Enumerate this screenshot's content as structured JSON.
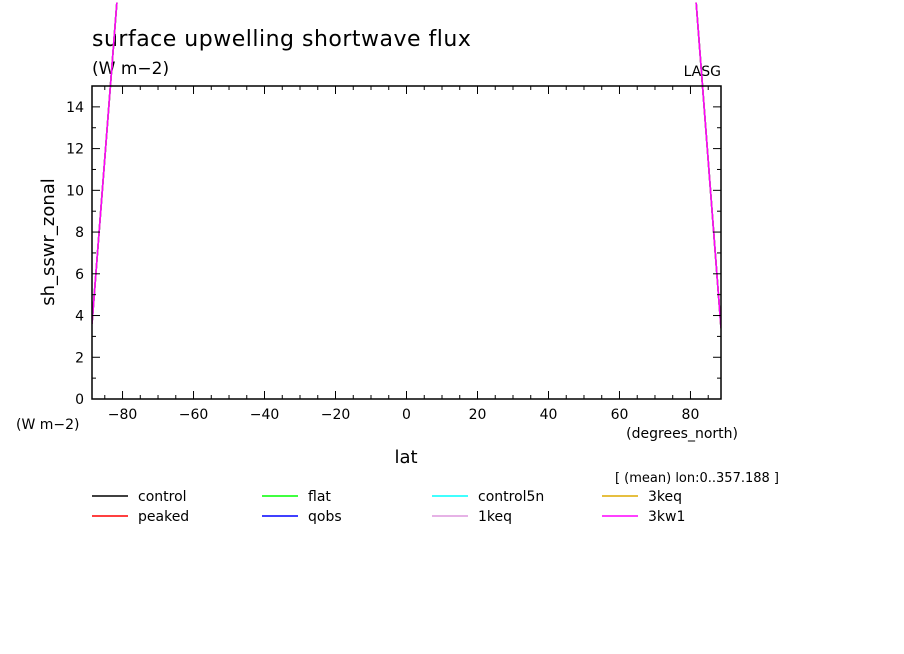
{
  "chart_data": {
    "type": "line",
    "title": "surface upwelling shortwave flux",
    "subtitle": "(W m−2)",
    "corner_label": "LASG",
    "xlabel": "lat",
    "xunit": "(degrees_north)",
    "ylabel": "sh_sswr_zonal",
    "yunit": "(W m−2)",
    "annotation": "[ (mean) lon:0..357.188 ]",
    "xlim": [
      -88.6,
      88.6
    ],
    "ylim": [
      0,
      15
    ],
    "xticks": [
      -80,
      -60,
      -40,
      -20,
      0,
      20,
      40,
      60,
      80
    ],
    "xtick_labels": [
      "−80",
      "−60",
      "−40",
      "−20",
      "0",
      "20",
      "40",
      "60",
      "80"
    ],
    "yticks": [
      0,
      2,
      4,
      6,
      8,
      10,
      12,
      14
    ],
    "ytick_labels": [
      "0",
      "2",
      "4",
      "6",
      "8",
      "10",
      "12",
      "14"
    ],
    "series": [
      {
        "name": "control",
        "color": "#000000",
        "x": [
          -88.6,
          -81.6,
          81.6,
          88.6
        ],
        "y": [
          3.6,
          19.0,
          19.0,
          3.4
        ]
      },
      {
        "name": "peaked",
        "color": "#ff0000",
        "x": [
          -88.6,
          -81.6,
          81.6,
          88.6
        ],
        "y": [
          3.6,
          19.0,
          19.0,
          3.4
        ]
      },
      {
        "name": "flat",
        "color": "#00ff00",
        "x": [
          -88.6,
          -81.6,
          81.6,
          88.6
        ],
        "y": [
          3.6,
          19.0,
          19.0,
          3.4
        ]
      },
      {
        "name": "qobs",
        "color": "#0000ff",
        "x": [
          -88.6,
          -81.6,
          81.6,
          88.6
        ],
        "y": [
          3.6,
          19.0,
          19.0,
          3.4
        ]
      },
      {
        "name": "control5n",
        "color": "#00ffff",
        "x": [
          -88.6,
          -81.6,
          81.6,
          88.6
        ],
        "y": [
          3.6,
          19.0,
          19.0,
          3.4
        ]
      },
      {
        "name": "1keq",
        "color": "#dd99dd",
        "x": [
          -88.6,
          -81.6,
          81.6,
          88.6
        ],
        "y": [
          3.6,
          19.0,
          19.0,
          3.4
        ]
      },
      {
        "name": "3keq",
        "color": "#ddaa00",
        "x": [
          -88.6,
          -81.6,
          81.6,
          88.6
        ],
        "y": [
          3.6,
          19.0,
          19.0,
          3.4
        ]
      },
      {
        "name": "3kw1",
        "color": "#ff00ff",
        "x": [
          -88.6,
          -81.6,
          81.6,
          88.6
        ],
        "y": [
          3.6,
          19.0,
          19.0,
          3.4
        ]
      }
    ]
  }
}
